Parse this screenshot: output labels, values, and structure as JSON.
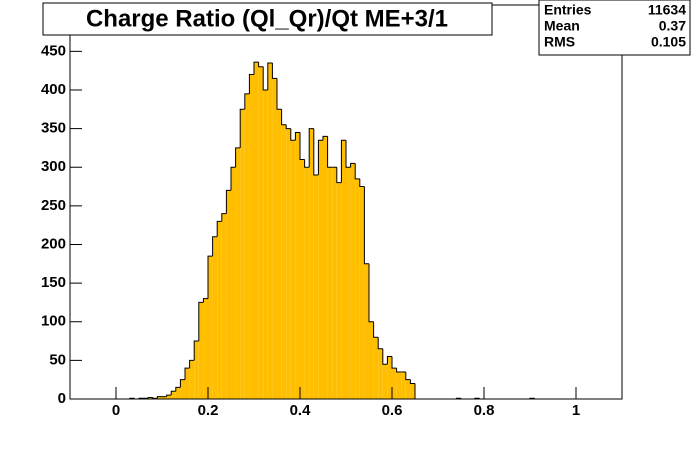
{
  "chart_data": {
    "type": "histogram",
    "title": "Charge Ratio (Ql_Qr)/Qt ME+3/1",
    "stats": [
      {
        "label": "Entries",
        "value": 11634
      },
      {
        "label": "Mean",
        "value": 0.37
      },
      {
        "label": "RMS",
        "value": 0.105
      }
    ],
    "color": "#ffbf00",
    "xlim": [
      -0.1,
      1.1
    ],
    "ylim": [
      0,
      510
    ],
    "xticks": [
      0,
      0.2,
      0.4,
      0.6,
      0.8,
      1
    ],
    "yticks": [
      0,
      50,
      100,
      150,
      200,
      250,
      300,
      350,
      400,
      450
    ],
    "bins": [
      -0.1,
      -0.09,
      -0.08,
      -0.07,
      -0.06,
      -0.05,
      -0.04,
      -0.03,
      -0.02,
      -0.01,
      0,
      0.01,
      0.02,
      0.03,
      0.04,
      0.05,
      0.06,
      0.07,
      0.08,
      0.09,
      0.1,
      0.11,
      0.12,
      0.13,
      0.14,
      0.15,
      0.16,
      0.17,
      0.18,
      0.19,
      0.2,
      0.21,
      0.22,
      0.23,
      0.24,
      0.25,
      0.26,
      0.27,
      0.28,
      0.29,
      0.3,
      0.31,
      0.32,
      0.33,
      0.34,
      0.35,
      0.36,
      0.37,
      0.38,
      0.39,
      0.4,
      0.41,
      0.42,
      0.43,
      0.44,
      0.45,
      0.46,
      0.47,
      0.48,
      0.49,
      0.5,
      0.51,
      0.52,
      0.53,
      0.54,
      0.55,
      0.56,
      0.57,
      0.58,
      0.59,
      0.6,
      0.61,
      0.62,
      0.63,
      0.64,
      0.65,
      0.66,
      0.67,
      0.68,
      0.69,
      0.7,
      0.71,
      0.72,
      0.73,
      0.74,
      0.75,
      0.76,
      0.77,
      0.78,
      0.79,
      0.8,
      0.81,
      0.82,
      0.83,
      0.84,
      0.85,
      0.86,
      0.87,
      0.88,
      0.89,
      0.9,
      0.91,
      0.92,
      0.93,
      0.94,
      0.95,
      0.96,
      0.97,
      0.98,
      0.99,
      1,
      1.01,
      1.02,
      1.03,
      1.04,
      1.05,
      1.06,
      1.07,
      1.08,
      1.09,
      1.1
    ],
    "values": [
      0,
      0,
      0,
      0,
      0,
      0,
      0,
      0,
      0,
      0,
      0,
      0,
      0,
      1,
      0,
      1,
      1,
      2,
      1,
      3,
      3,
      5,
      10,
      15,
      25,
      40,
      50,
      75,
      125,
      130,
      185,
      210,
      230,
      240,
      270,
      300,
      325,
      375,
      395,
      420,
      436,
      430,
      400,
      435,
      415,
      375,
      355,
      350,
      335,
      345,
      310,
      300,
      350,
      290,
      335,
      340,
      300,
      300,
      280,
      335,
      300,
      305,
      285,
      275,
      175,
      100,
      80,
      65,
      45,
      55,
      40,
      35,
      35,
      25,
      20,
      0,
      0,
      0,
      0,
      0,
      0,
      0,
      0,
      0,
      1,
      0,
      0,
      0,
      1,
      0,
      0,
      0,
      0,
      0,
      0,
      0,
      0,
      0,
      0,
      0,
      1,
      0,
      0,
      0,
      0,
      0,
      0,
      0,
      0,
      0,
      0,
      0,
      0,
      0,
      0,
      0,
      0,
      0,
      0,
      0
    ]
  }
}
